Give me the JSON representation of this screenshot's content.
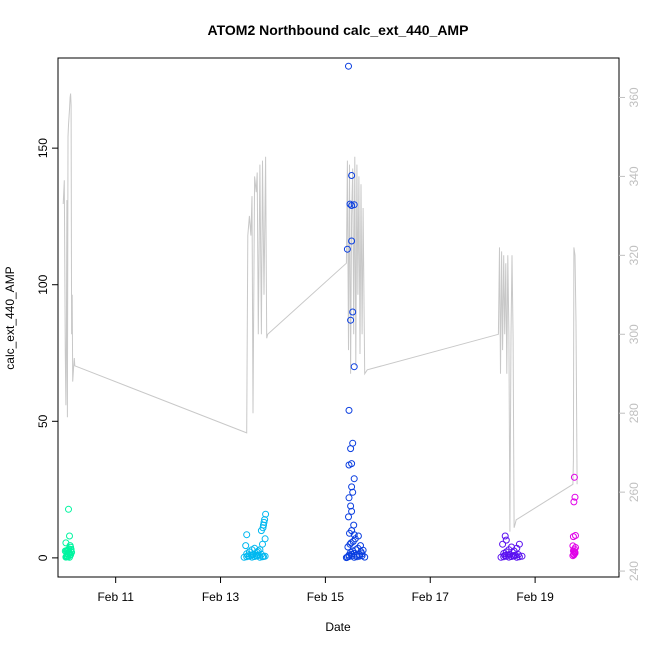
{
  "chart_data": {
    "type": "scatter",
    "title": "ATOM2 Northbound calc_ext_440_AMP",
    "xlabel": "Date",
    "ylabel": "calc_ext_440_AMP",
    "x_unit": "days (February)",
    "xlim": [
      9.9,
      20.6
    ],
    "ylim": [
      -7,
      183
    ],
    "y2lim": [
      238.5,
      370
    ],
    "x_ticks": [
      {
        "value": 11,
        "label": "Feb 11"
      },
      {
        "value": 13,
        "label": "Feb 13"
      },
      {
        "value": 15,
        "label": "Feb 15"
      },
      {
        "value": 17,
        "label": "Feb 17"
      },
      {
        "value": 19,
        "label": "Feb 19"
      }
    ],
    "y_ticks": [
      {
        "value": 0,
        "label": "0"
      },
      {
        "value": 50,
        "label": "50"
      },
      {
        "value": 100,
        "label": "100"
      },
      {
        "value": 150,
        "label": "150"
      }
    ],
    "y2_ticks": [
      {
        "value": 240,
        "label": "240"
      },
      {
        "value": 260,
        "label": "260"
      },
      {
        "value": 280,
        "label": "280"
      },
      {
        "value": 300,
        "label": "300"
      },
      {
        "value": 320,
        "label": "320"
      },
      {
        "value": 340,
        "label": "340"
      },
      {
        "value": 360,
        "label": "360"
      }
    ],
    "colors": {
      "line": "#c8c8c8",
      "axis": "#000000",
      "axis2": "#c0c0c0",
      "series": [
        "#00f5a0",
        "#00b8f0",
        "#0a3ee0",
        "#5a10f0",
        "#e000e8"
      ]
    },
    "series": [
      {
        "color_index": 0,
        "x": [
          10.05,
          10.07,
          10.1,
          10.12,
          10.15,
          10.08,
          10.11,
          10.14,
          10.06,
          10.13,
          10.09,
          10.16,
          10.04,
          10.1,
          10.12,
          10.08,
          10.14,
          10.07,
          10.11,
          10.06,
          10.15,
          10.09,
          10.13,
          10.05,
          10.12,
          10.1
        ],
        "y": [
          0.3,
          0.8,
          1.2,
          1.8,
          2.3,
          2.8,
          3.3,
          3.9,
          0.5,
          1.0,
          1.5,
          2.0,
          2.5,
          3.0,
          0.2,
          0.6,
          1.1,
          1.6,
          2.1,
          2.6,
          3.1,
          0.4,
          4.5,
          5.5,
          8,
          17.8
        ]
      },
      {
        "color_index": 1,
        "x": [
          13.45,
          13.5,
          13.55,
          13.6,
          13.65,
          13.7,
          13.75,
          13.8,
          13.85,
          13.52,
          13.58,
          13.62,
          13.68,
          13.72,
          13.78,
          13.82,
          13.5,
          13.55,
          13.6,
          13.65,
          13.48,
          13.7,
          13.75,
          13.8,
          13.85,
          13.78,
          13.82,
          13.84,
          13.86,
          13.81,
          13.83,
          13.72,
          13.5
        ],
        "y": [
          0.2,
          0.4,
          0.6,
          0.3,
          0.5,
          0.7,
          0.2,
          0.4,
          0.6,
          0.8,
          1.0,
          1.2,
          0.9,
          1.1,
          1.3,
          0.5,
          1.5,
          2.2,
          3.0,
          3.5,
          4.5,
          2.0,
          3.0,
          5.0,
          7.0,
          10.0,
          12.0,
          14.0,
          16.0,
          11.0,
          13.0,
          2.5,
          8.5
        ]
      },
      {
        "color_index": 2,
        "x": [
          15.4,
          15.42,
          15.45,
          15.5,
          15.55,
          15.6,
          15.65,
          15.7,
          15.75,
          15.45,
          15.5,
          15.55,
          15.6,
          15.65,
          15.7,
          15.48,
          15.52,
          15.58,
          15.62,
          15.68,
          15.72,
          15.43,
          15.47,
          15.53,
          15.57,
          15.63,
          15.67,
          15.46,
          15.5,
          15.54,
          15.44,
          15.5,
          15.48,
          15.45,
          15.52,
          15.5,
          15.55,
          15.45,
          15.5,
          15.48,
          15.52,
          15.45,
          15.55,
          15.48,
          15.52,
          15.42,
          15.5,
          15.5,
          15.47,
          15.55,
          15.5,
          15.44,
          15.49,
          15.55
        ],
        "y": [
          0.1,
          0.3,
          0.5,
          0.7,
          0.2,
          0.4,
          0.6,
          0.8,
          0.3,
          1.0,
          1.3,
          1.6,
          0.9,
          1.2,
          1.5,
          2.0,
          2.5,
          3.0,
          3.5,
          2.2,
          2.8,
          4.0,
          5.0,
          6.0,
          7.0,
          8.0,
          4.5,
          9.0,
          10.0,
          12.0,
          15.0,
          17.0,
          19.0,
          22.0,
          24.0,
          26.0,
          29.0,
          34.0,
          34.5,
          40.0,
          42.0,
          54.0,
          70.0,
          87.0,
          90.0,
          113.0,
          116.0,
          129.0,
          129.5,
          129.3,
          140.0,
          180.0,
          5.5,
          8.5
        ]
      },
      {
        "color_index": 3,
        "x": [
          18.35,
          18.4,
          18.45,
          18.5,
          18.55,
          18.6,
          18.65,
          18.7,
          18.75,
          18.42,
          18.48,
          18.52,
          18.58,
          18.62,
          18.68,
          18.4,
          18.45,
          18.5,
          18.55,
          18.38,
          18.45,
          18.6,
          18.65,
          18.7,
          18.43
        ],
        "y": [
          0.2,
          0.4,
          0.6,
          0.3,
          0.5,
          0.7,
          0.2,
          0.4,
          0.6,
          0.9,
          1.1,
          1.3,
          0.8,
          1.0,
          1.2,
          1.6,
          2.2,
          3.0,
          4.0,
          5.0,
          6.5,
          2.5,
          3.5,
          5.0,
          8.0
        ]
      },
      {
        "color_index": 4,
        "x": [
          19.72,
          19.74,
          19.76,
          19.73,
          19.75,
          19.77,
          19.72,
          19.74,
          19.76,
          19.75,
          19.73,
          19.77,
          19.74,
          19.76,
          19.75
        ],
        "y": [
          0.8,
          1.4,
          2.0,
          2.6,
          3.2,
          3.8,
          4.4,
          1.1,
          1.7,
          2.3,
          7.8,
          8.2,
          20.5,
          22.2,
          29.5
        ]
      }
    ],
    "line_series": {
      "axis": "right",
      "x": [
        10.0,
        10.02,
        10.04,
        10.05,
        10.06,
        10.07,
        10.08,
        10.09,
        10.1,
        10.11,
        10.12,
        10.13,
        10.14,
        10.15,
        10.16,
        10.17,
        10.18,
        10.19,
        10.2,
        10.21,
        10.22,
        13.5,
        13.52,
        13.55,
        13.58,
        13.6,
        13.62,
        13.65,
        13.68,
        13.7,
        13.72,
        13.75,
        13.78,
        13.8,
        13.83,
        13.86,
        13.88,
        13.9,
        15.4,
        15.42,
        15.44,
        15.46,
        15.48,
        15.5,
        15.52,
        15.54,
        15.56,
        15.58,
        15.6,
        15.62,
        15.64,
        15.66,
        15.68,
        15.7,
        15.72,
        15.75,
        15.8,
        18.3,
        18.32,
        18.34,
        18.36,
        18.38,
        18.4,
        18.42,
        18.44,
        18.46,
        18.48,
        18.5,
        18.52,
        18.54,
        18.56,
        18.58,
        18.6,
        18.62,
        18.64,
        19.72,
        19.73,
        19.74,
        19.76,
        19.78,
        19.8
      ],
      "y": [
        333,
        339,
        295,
        282,
        300,
        334,
        279,
        350,
        353,
        355,
        357,
        360,
        361,
        358,
        300,
        310,
        288,
        290,
        292,
        294,
        292,
        275,
        325,
        330,
        325,
        335,
        280,
        340,
        336,
        341,
        300,
        343,
        300,
        344,
        310,
        345,
        299,
        300,
        318,
        344,
        296,
        343,
        290,
        330,
        342,
        300,
        345,
        292,
        343,
        310,
        340,
        295,
        338,
        300,
        332,
        290,
        291,
        300,
        322,
        290,
        321,
        296,
        320,
        300,
        318,
        290,
        320,
        300,
        250,
        300,
        320,
        299,
        251,
        252,
        253,
        262,
        268,
        322,
        320,
        303,
        262
      ]
    }
  }
}
